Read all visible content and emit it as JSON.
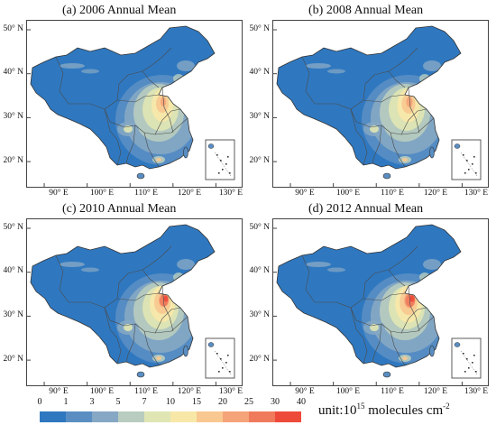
{
  "panels": [
    {
      "title": "(a) 2006 Annual Mean"
    },
    {
      "title": "(b) 2008 Annual Mean"
    },
    {
      "title": "(c) 2010 Annual Mean"
    },
    {
      "title": "(d) 2012 Annual Mean"
    }
  ],
  "lat_labels": [
    "50° N",
    "40° N",
    "30° N",
    "20° N"
  ],
  "lon_labels": [
    "90° E",
    "100° E",
    "110° E",
    "120° E",
    "130° E"
  ],
  "legend": {
    "labels": [
      "0",
      "1",
      "3",
      "5",
      "7",
      "10",
      "15",
      "20",
      "25",
      "30",
      "40"
    ],
    "colors": [
      "#2f78c0",
      "#5a8ec3",
      "#86a8c4",
      "#b8cdbf",
      "#e0e6b3",
      "#f8e8a8",
      "#f8c890",
      "#f4a478",
      "#f07a5c",
      "#ee4a3a"
    ],
    "unit_prefix": "unit:10",
    "unit_exp": "15",
    "unit_suffix": " molecules cm",
    "unit_suffix_exp": "-2"
  }
}
